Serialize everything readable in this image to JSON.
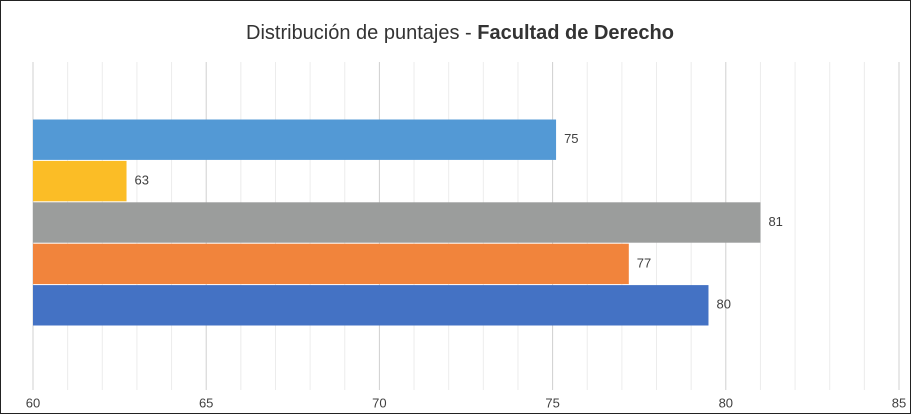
{
  "chart_data": {
    "type": "barh",
    "title_parts": [
      "Distribución de puntajes -",
      "Facultad de Derecho"
    ],
    "categories": [
      null,
      null,
      null,
      null,
      null
    ],
    "values": [
      75.1,
      62.7,
      81.0,
      77.2,
      79.5
    ],
    "value_labels": [
      "75",
      "63",
      "81",
      "77",
      "80"
    ],
    "colors": [
      "#5399d5",
      "#fbbd26",
      "#9b9d9c",
      "#f1843c",
      "#4472c4"
    ],
    "xlim": [
      60,
      85
    ],
    "xticks": [
      60,
      65,
      70,
      75,
      80,
      85
    ],
    "grid": true,
    "minor_grid": true
  }
}
